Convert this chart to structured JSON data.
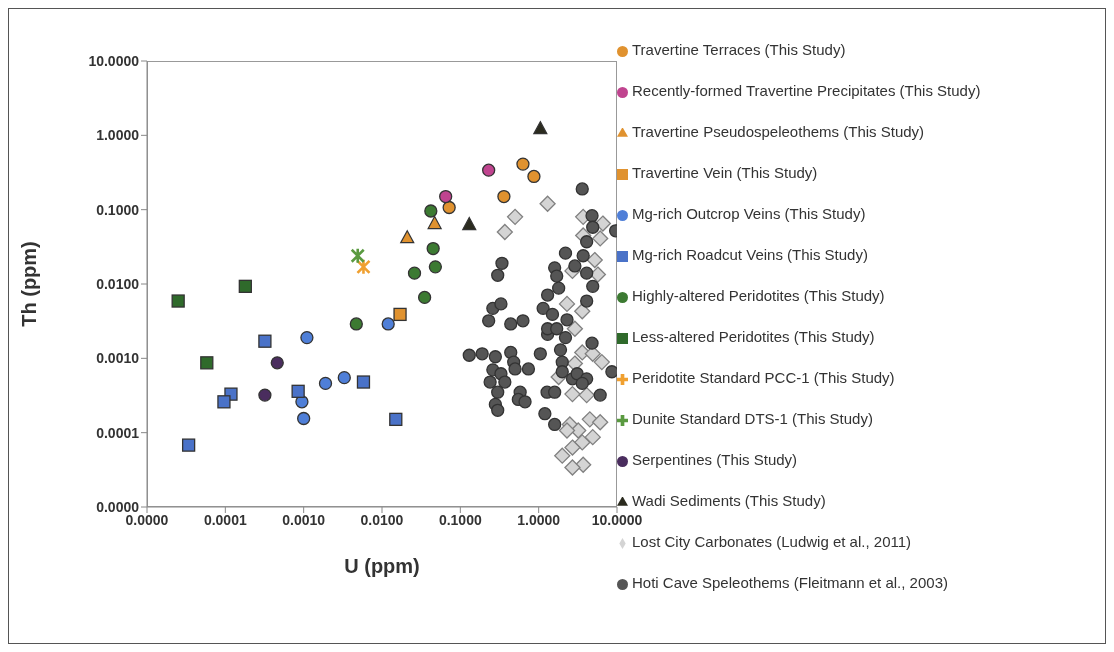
{
  "chart_data": {
    "type": "scatter",
    "xlabel": "U (ppm)",
    "ylabel": "Th (ppm)",
    "log": "xy",
    "legend": "right",
    "xlim": [
      1e-05,
      10
    ],
    "ylim": [
      1e-05,
      10
    ],
    "xticks": [
      {
        "value": 1e-05,
        "label": "0.0000"
      },
      {
        "value": 0.0001,
        "label": "0.0001"
      },
      {
        "value": 0.001,
        "label": "0.0010"
      },
      {
        "value": 0.01,
        "label": "0.0100"
      },
      {
        "value": 0.1,
        "label": "0.1000"
      },
      {
        "value": 1,
        "label": "1.0000"
      },
      {
        "value": 10,
        "label": "10.0000"
      }
    ],
    "yticks": [
      {
        "value": 1e-05,
        "label": "0.0000"
      },
      {
        "value": 0.0001,
        "label": "0.0001"
      },
      {
        "value": 0.001,
        "label": "0.0010"
      },
      {
        "value": 0.01,
        "label": "0.0100"
      },
      {
        "value": 0.1,
        "label": "0.1000"
      },
      {
        "value": 1,
        "label": "1.0000"
      },
      {
        "value": 10,
        "label": "10.0000"
      }
    ],
    "series": [
      {
        "name": "Travertine Terraces (This Study)",
        "color": "#e0922f",
        "marker": "circle",
        "x": [
          0.63,
          0.87,
          0.36,
          0.072
        ],
        "values": [
          0.41,
          0.28,
          0.15,
          0.107
        ]
      },
      {
        "name": "Recently-formed Travertine Precipitates (This Study)",
        "color": "#c0448f",
        "marker": "circle",
        "x": [
          0.23,
          0.065
        ],
        "values": [
          0.34,
          0.15
        ]
      },
      {
        "name": "Travertine Pseudospeleothems (This Study)",
        "color": "#e0922f",
        "marker": "triangle",
        "x": [
          0.021,
          0.047
        ],
        "values": [
          0.042,
          0.065
        ]
      },
      {
        "name": "Travertine Vein (This Study)",
        "color": "#e0922f",
        "marker": "square",
        "x": [
          0.017
        ],
        "values": [
          0.0039
        ]
      },
      {
        "name": "Mg-rich Outcrop Veins (This Study)",
        "color": "#4f7fd8",
        "marker": "circle",
        "x": [
          0.0011,
          0.012,
          0.0019,
          0.0033,
          0.00095,
          0.001
        ],
        "values": [
          0.0019,
          0.0029,
          0.00046,
          0.00055,
          0.00026,
          0.000155
        ]
      },
      {
        "name": "Mg-rich Roadcut Veins (This Study)",
        "color": "#4a72c8",
        "marker": "square",
        "x": [
          0.00032,
          0.000118,
          9.6e-05,
          0.00085,
          0.0058,
          0.015,
          3.4e-05
        ],
        "values": [
          0.0017,
          0.00033,
          0.00026,
          0.00036,
          0.00048,
          0.000151,
          6.8e-05
        ]
      },
      {
        "name": "Highly-altered Peridotites (This Study)",
        "color": "#3c7a32",
        "marker": "circle",
        "x": [
          0.042,
          0.045,
          0.048,
          0.026,
          0.035,
          0.0047
        ],
        "values": [
          0.096,
          0.03,
          0.017,
          0.014,
          0.0066,
          0.0029
        ]
      },
      {
        "name": "Less-altered Peridotites (This Study)",
        "color": "#2f6a2b",
        "marker": "square",
        "x": [
          2.5e-05,
          0.00018,
          5.8e-05
        ],
        "values": [
          0.0059,
          0.0093,
          0.00087
        ]
      },
      {
        "name": "Peridotite Standard PCC-1 (This Study)",
        "color": "#f0a030",
        "marker": "cross",
        "x": [
          0.0058
        ],
        "values": [
          0.017
        ]
      },
      {
        "name": "Dunite Standard DTS-1 (This Study)",
        "color": "#5a9a40",
        "marker": "cross",
        "x": [
          0.0049
        ],
        "values": [
          0.024
        ]
      },
      {
        "name": "Serpentines (This Study)",
        "color": "#4a2d5e",
        "marker": "circle",
        "x": [
          0.00046,
          0.00032
        ],
        "values": [
          0.00087,
          0.00032
        ]
      },
      {
        "name": "Wadi Sediments (This Study)",
        "color": "#2b2b1f",
        "marker": "triangle",
        "x": [
          1.05,
          0.13
        ],
        "values": [
          1.23,
          0.063
        ]
      },
      {
        "name": "Lost City Carbonates (Ludwig et al., 2011)",
        "color": "#d4d4d4",
        "marker": "diamond",
        "x": [
          1.3,
          0.5,
          0.37,
          3.7,
          6.6,
          3.7,
          6.1,
          5.2,
          5.7,
          2.7,
          2.3,
          3.6,
          2.9,
          3.6,
          4.9,
          6.4,
          2.9,
          1.8,
          4.5,
          6.1,
          2.5,
          3.2,
          2.3,
          4.9,
          3.6,
          2.7,
          2.0,
          3.7,
          2.7,
          2.7,
          4.1
        ],
        "values": [
          0.12,
          0.08,
          0.05,
          0.08,
          0.065,
          0.045,
          0.041,
          0.021,
          0.0134,
          0.015,
          0.0054,
          0.0043,
          0.0025,
          0.0012,
          0.00115,
          0.00089,
          0.00085,
          0.00056,
          0.000151,
          0.000138,
          0.000129,
          0.000107,
          0.000107,
          8.7e-05,
          7.4e-05,
          6.3e-05,
          4.9e-05,
          3.7e-05,
          3.4e-05,
          0.00033,
          0.00032
        ]
      },
      {
        "name": "Hoti Cave Speleothems (Fleitmann et al., 2003)",
        "color": "#555555",
        "marker": "circle",
        "x": [
          3.6,
          4.8,
          4.9,
          9.6,
          4.1,
          0.34,
          0.3,
          2.2,
          1.6,
          1.7,
          2.9,
          3.7,
          4.1,
          4.9,
          4.1,
          1.8,
          1.3,
          1.14,
          1.5,
          2.3,
          0.26,
          0.33,
          0.23,
          0.44,
          0.63,
          1.3,
          0.13,
          0.19,
          0.28,
          0.44,
          0.48,
          0.5,
          0.74,
          0.26,
          0.33,
          0.24,
          0.37,
          0.3,
          0.58,
          0.55,
          0.67,
          0.28,
          0.3,
          1.05,
          1.3,
          1.7,
          2.2,
          1.9,
          2.0,
          2.0,
          2.7,
          3.1,
          4.1,
          3.6,
          4.8,
          8.6,
          6.1,
          1.28,
          1.6,
          1.2,
          1.6
        ],
        "values": [
          0.19,
          0.083,
          0.058,
          0.052,
          0.037,
          0.019,
          0.0131,
          0.026,
          0.0165,
          0.0128,
          0.0175,
          0.024,
          0.014,
          0.0093,
          0.0059,
          0.0088,
          0.0071,
          0.0047,
          0.0039,
          0.0033,
          0.0047,
          0.0054,
          0.0032,
          0.0029,
          0.0032,
          0.0021,
          0.0011,
          0.00115,
          0.00105,
          0.0012,
          0.00089,
          0.00072,
          0.00072,
          0.0007,
          0.00062,
          0.00048,
          0.00048,
          0.00035,
          0.00035,
          0.00028,
          0.00026,
          0.00024,
          0.0002,
          0.00115,
          0.0025,
          0.0025,
          0.0019,
          0.0013,
          0.00089,
          0.00066,
          0.00053,
          0.00062,
          0.00053,
          0.00046,
          0.0016,
          0.00066,
          0.00032,
          0.00035,
          0.00035,
          0.00018,
          0.000129
        ]
      }
    ]
  }
}
